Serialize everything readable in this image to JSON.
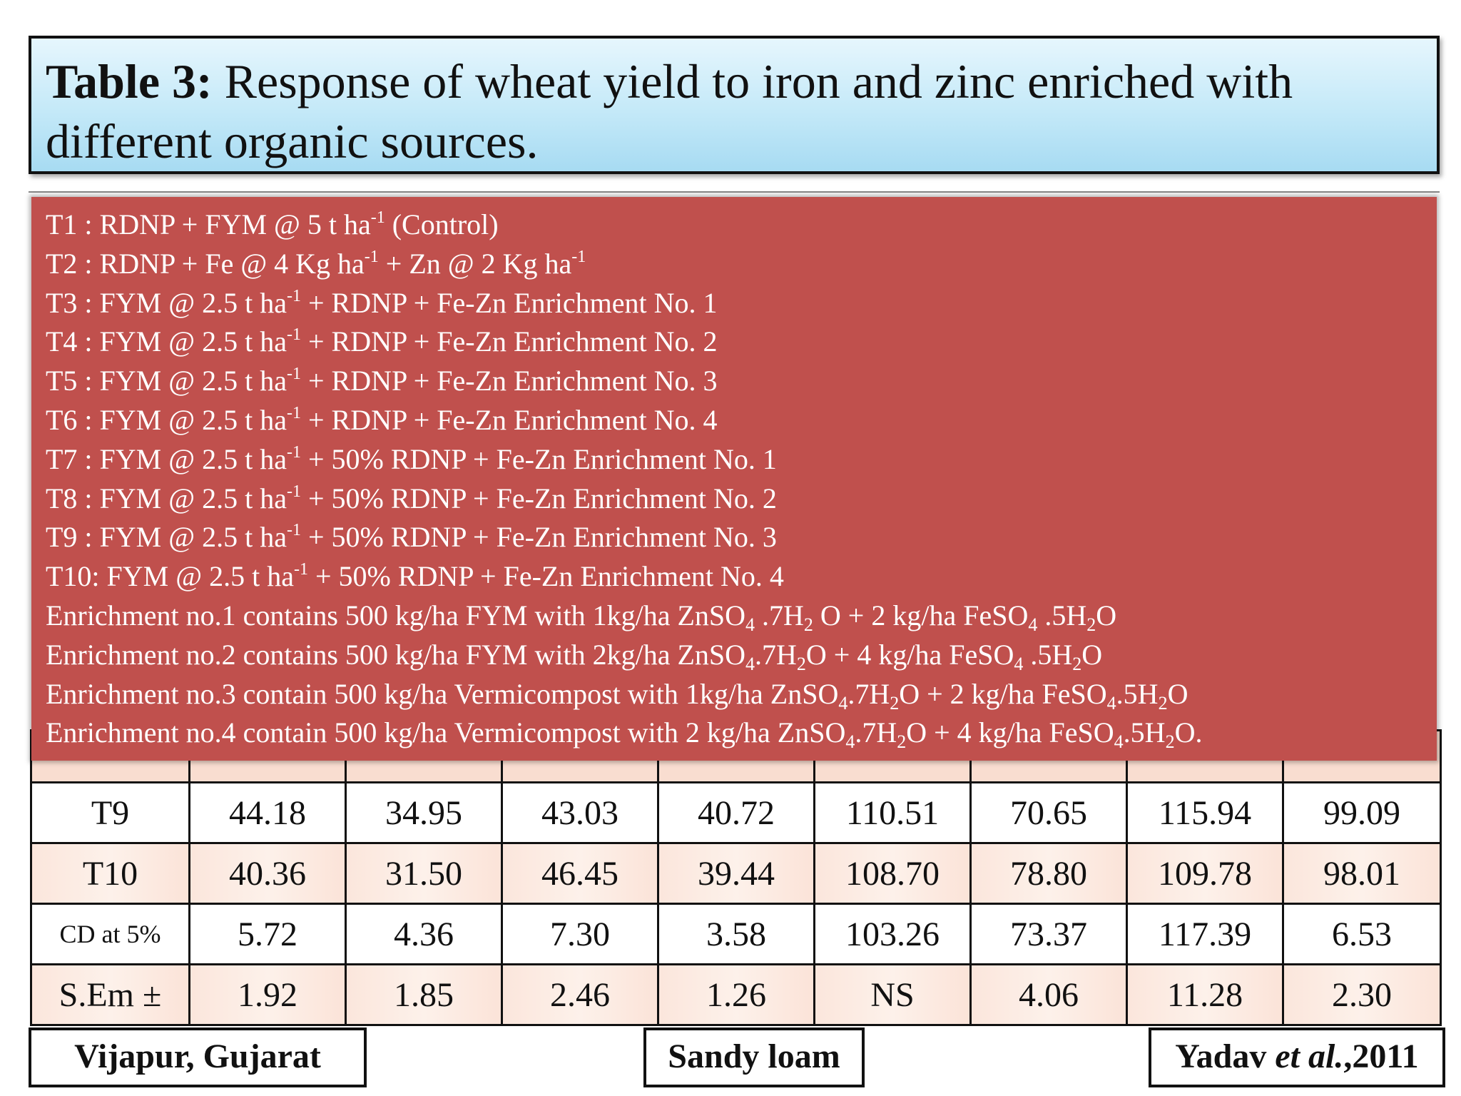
{
  "title": {
    "prefix": "Table 3:",
    "text": " Response of wheat yield to iron and zinc enriched with different organic sources."
  },
  "treatments": [
    {
      "parts": [
        {
          "t": "T1 : RDNP + FYM @ 5 t ha"
        },
        {
          "sup": "-1"
        },
        {
          "t": " (Control)"
        }
      ]
    },
    {
      "parts": [
        {
          "t": "T2 : RDNP + Fe @ 4 Kg ha"
        },
        {
          "sup": "-1"
        },
        {
          "t": " + Zn @ 2 Kg ha"
        },
        {
          "sup": "-1"
        }
      ]
    },
    {
      "parts": [
        {
          "t": "T3 : FYM @ 2.5 t ha"
        },
        {
          "sup": "-1"
        },
        {
          "t": " + RDNP + Fe-Zn Enrichment No. 1"
        }
      ]
    },
    {
      "parts": [
        {
          "t": "T4 : FYM @ 2.5 t ha"
        },
        {
          "sup": "-1"
        },
        {
          "t": " + RDNP + Fe-Zn Enrichment No. 2"
        }
      ]
    },
    {
      "parts": [
        {
          "t": "T5 : FYM @ 2.5 t ha"
        },
        {
          "sup": "-1"
        },
        {
          "t": " + RDNP + Fe-Zn Enrichment No. 3"
        }
      ]
    },
    {
      "parts": [
        {
          "t": "T6 : FYM @ 2.5 t ha"
        },
        {
          "sup": "-1"
        },
        {
          "t": " + RDNP + Fe-Zn Enrichment No. 4"
        }
      ]
    },
    {
      "parts": [
        {
          "t": "T7 : FYM @ 2.5 t ha"
        },
        {
          "sup": "-1"
        },
        {
          "t": " + 50% RDNP + Fe-Zn Enrichment No. 1"
        }
      ]
    },
    {
      "parts": [
        {
          "t": "T8 : FYM @ 2.5 t ha"
        },
        {
          "sup": "-1"
        },
        {
          "t": " + 50% RDNP + Fe-Zn Enrichment No. 2"
        }
      ]
    },
    {
      "parts": [
        {
          "t": "T9 : FYM @ 2.5 t ha"
        },
        {
          "sup": "-1"
        },
        {
          "t": " + 50% RDNP + Fe-Zn Enrichment No. 3"
        }
      ]
    },
    {
      "parts": [
        {
          "t": "T10: FYM @ 2.5 t ha"
        },
        {
          "sup": "-1"
        },
        {
          "t": " + 50% RDNP + Fe-Zn Enrichment No. 4"
        }
      ]
    }
  ],
  "enrichments": [
    {
      "parts": [
        {
          "t": "Enrichment no.1 contains 500 kg/ha FYM with 1kg/ha ZnSO"
        },
        {
          "sub": "4"
        },
        {
          "t": " .7H"
        },
        {
          "sub": "2"
        },
        {
          "t": " O + 2 kg/ha FeSO"
        },
        {
          "sub": "4"
        },
        {
          "t": " .5H"
        },
        {
          "sub": "2"
        },
        {
          "t": "O"
        }
      ]
    },
    {
      "parts": [
        {
          "t": "Enrichment no.2 contains 500 kg/ha FYM with 2kg/ha ZnSO"
        },
        {
          "sub": "4"
        },
        {
          "t": ".7H"
        },
        {
          "sub": "2"
        },
        {
          "t": "O + 4 kg/ha FeSO"
        },
        {
          "sub": "4"
        },
        {
          "t": " .5H"
        },
        {
          "sub": "2"
        },
        {
          "t": "O"
        }
      ]
    },
    {
      "parts": [
        {
          "t": "Enrichment no.3 contain 500 kg/ha Vermicompost with 1kg/ha ZnSO"
        },
        {
          "sub": "4"
        },
        {
          "t": ".7H"
        },
        {
          "sub": "2"
        },
        {
          "t": "O + 2 kg/ha FeSO"
        },
        {
          "sub": "4"
        },
        {
          "t": ".5H"
        },
        {
          "sub": "2"
        },
        {
          "t": "O"
        }
      ]
    },
    {
      "parts": [
        {
          "t": "Enrichment no.4 contain 500 kg/ha Vermicompost with 2 kg/ha ZnSO"
        },
        {
          "sub": "4"
        },
        {
          "t": ".7H"
        },
        {
          "sub": "2"
        },
        {
          "t": "O + 4 kg/ha FeSO"
        },
        {
          "sub": "4"
        },
        {
          "t": ".5H"
        },
        {
          "sub": "2"
        },
        {
          "t": "O."
        }
      ]
    }
  ],
  "table": {
    "rows": [
      {
        "label": "T9",
        "values": [
          "44.18",
          "34.95",
          "43.03",
          "40.72",
          "110.51",
          "70.65",
          "115.94",
          "99.09"
        ]
      },
      {
        "label": "T10",
        "values": [
          "40.36",
          "31.50",
          "46.45",
          "39.44",
          "108.70",
          "78.80",
          "109.78",
          "98.01"
        ]
      },
      {
        "label": "CD at 5%",
        "values": [
          "5.72",
          "4.36",
          "7.30",
          "3.58",
          "103.26",
          "73.37",
          "117.39",
          "6.53"
        ]
      },
      {
        "label": "S.Em ±",
        "values": [
          "1.92",
          "1.85",
          "2.46",
          "1.26",
          "NS",
          "4.06",
          "11.28",
          "2.30"
        ]
      }
    ]
  },
  "footer": {
    "location": "Vijapur, Gujarat",
    "soil": "Sandy loam",
    "ref_author": "Yadav ",
    "ref_etal": "et al.",
    "ref_year": ",2011"
  }
}
